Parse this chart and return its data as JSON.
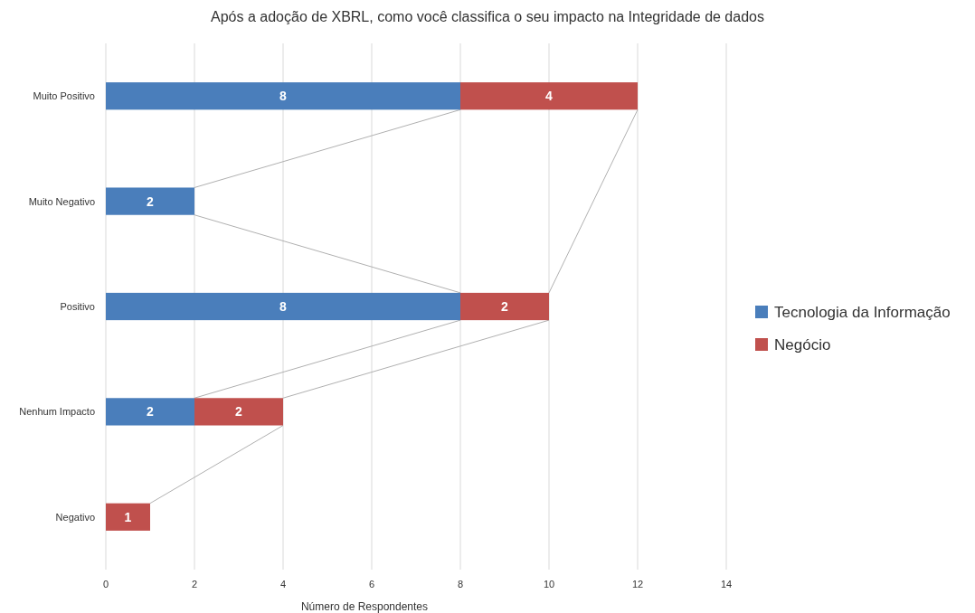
{
  "chart_data": {
    "type": "bar",
    "orientation": "horizontal",
    "stacked": true,
    "title": "Após a adoção de XBRL, como você classifica o seu impacto na Integridade de dados",
    "xlabel": "Número de Respondentes",
    "categories": [
      "Muito Positivo",
      "Muito Negativo",
      "Positivo",
      "Nenhum Impacto",
      "Negativo"
    ],
    "series": [
      {
        "name": "Tecnologia da Informação",
        "color": "#4a7ebb",
        "values": [
          8,
          2,
          8,
          2,
          null
        ]
      },
      {
        "name": "Negócio",
        "color": "#c0504d",
        "values": [
          4,
          null,
          2,
          2,
          1
        ]
      }
    ],
    "xlim": [
      0,
      14
    ],
    "xticks": [
      0,
      2,
      4,
      6,
      8,
      10,
      12,
      14
    ],
    "grid": "x",
    "legend": "right",
    "data_labels": true
  }
}
